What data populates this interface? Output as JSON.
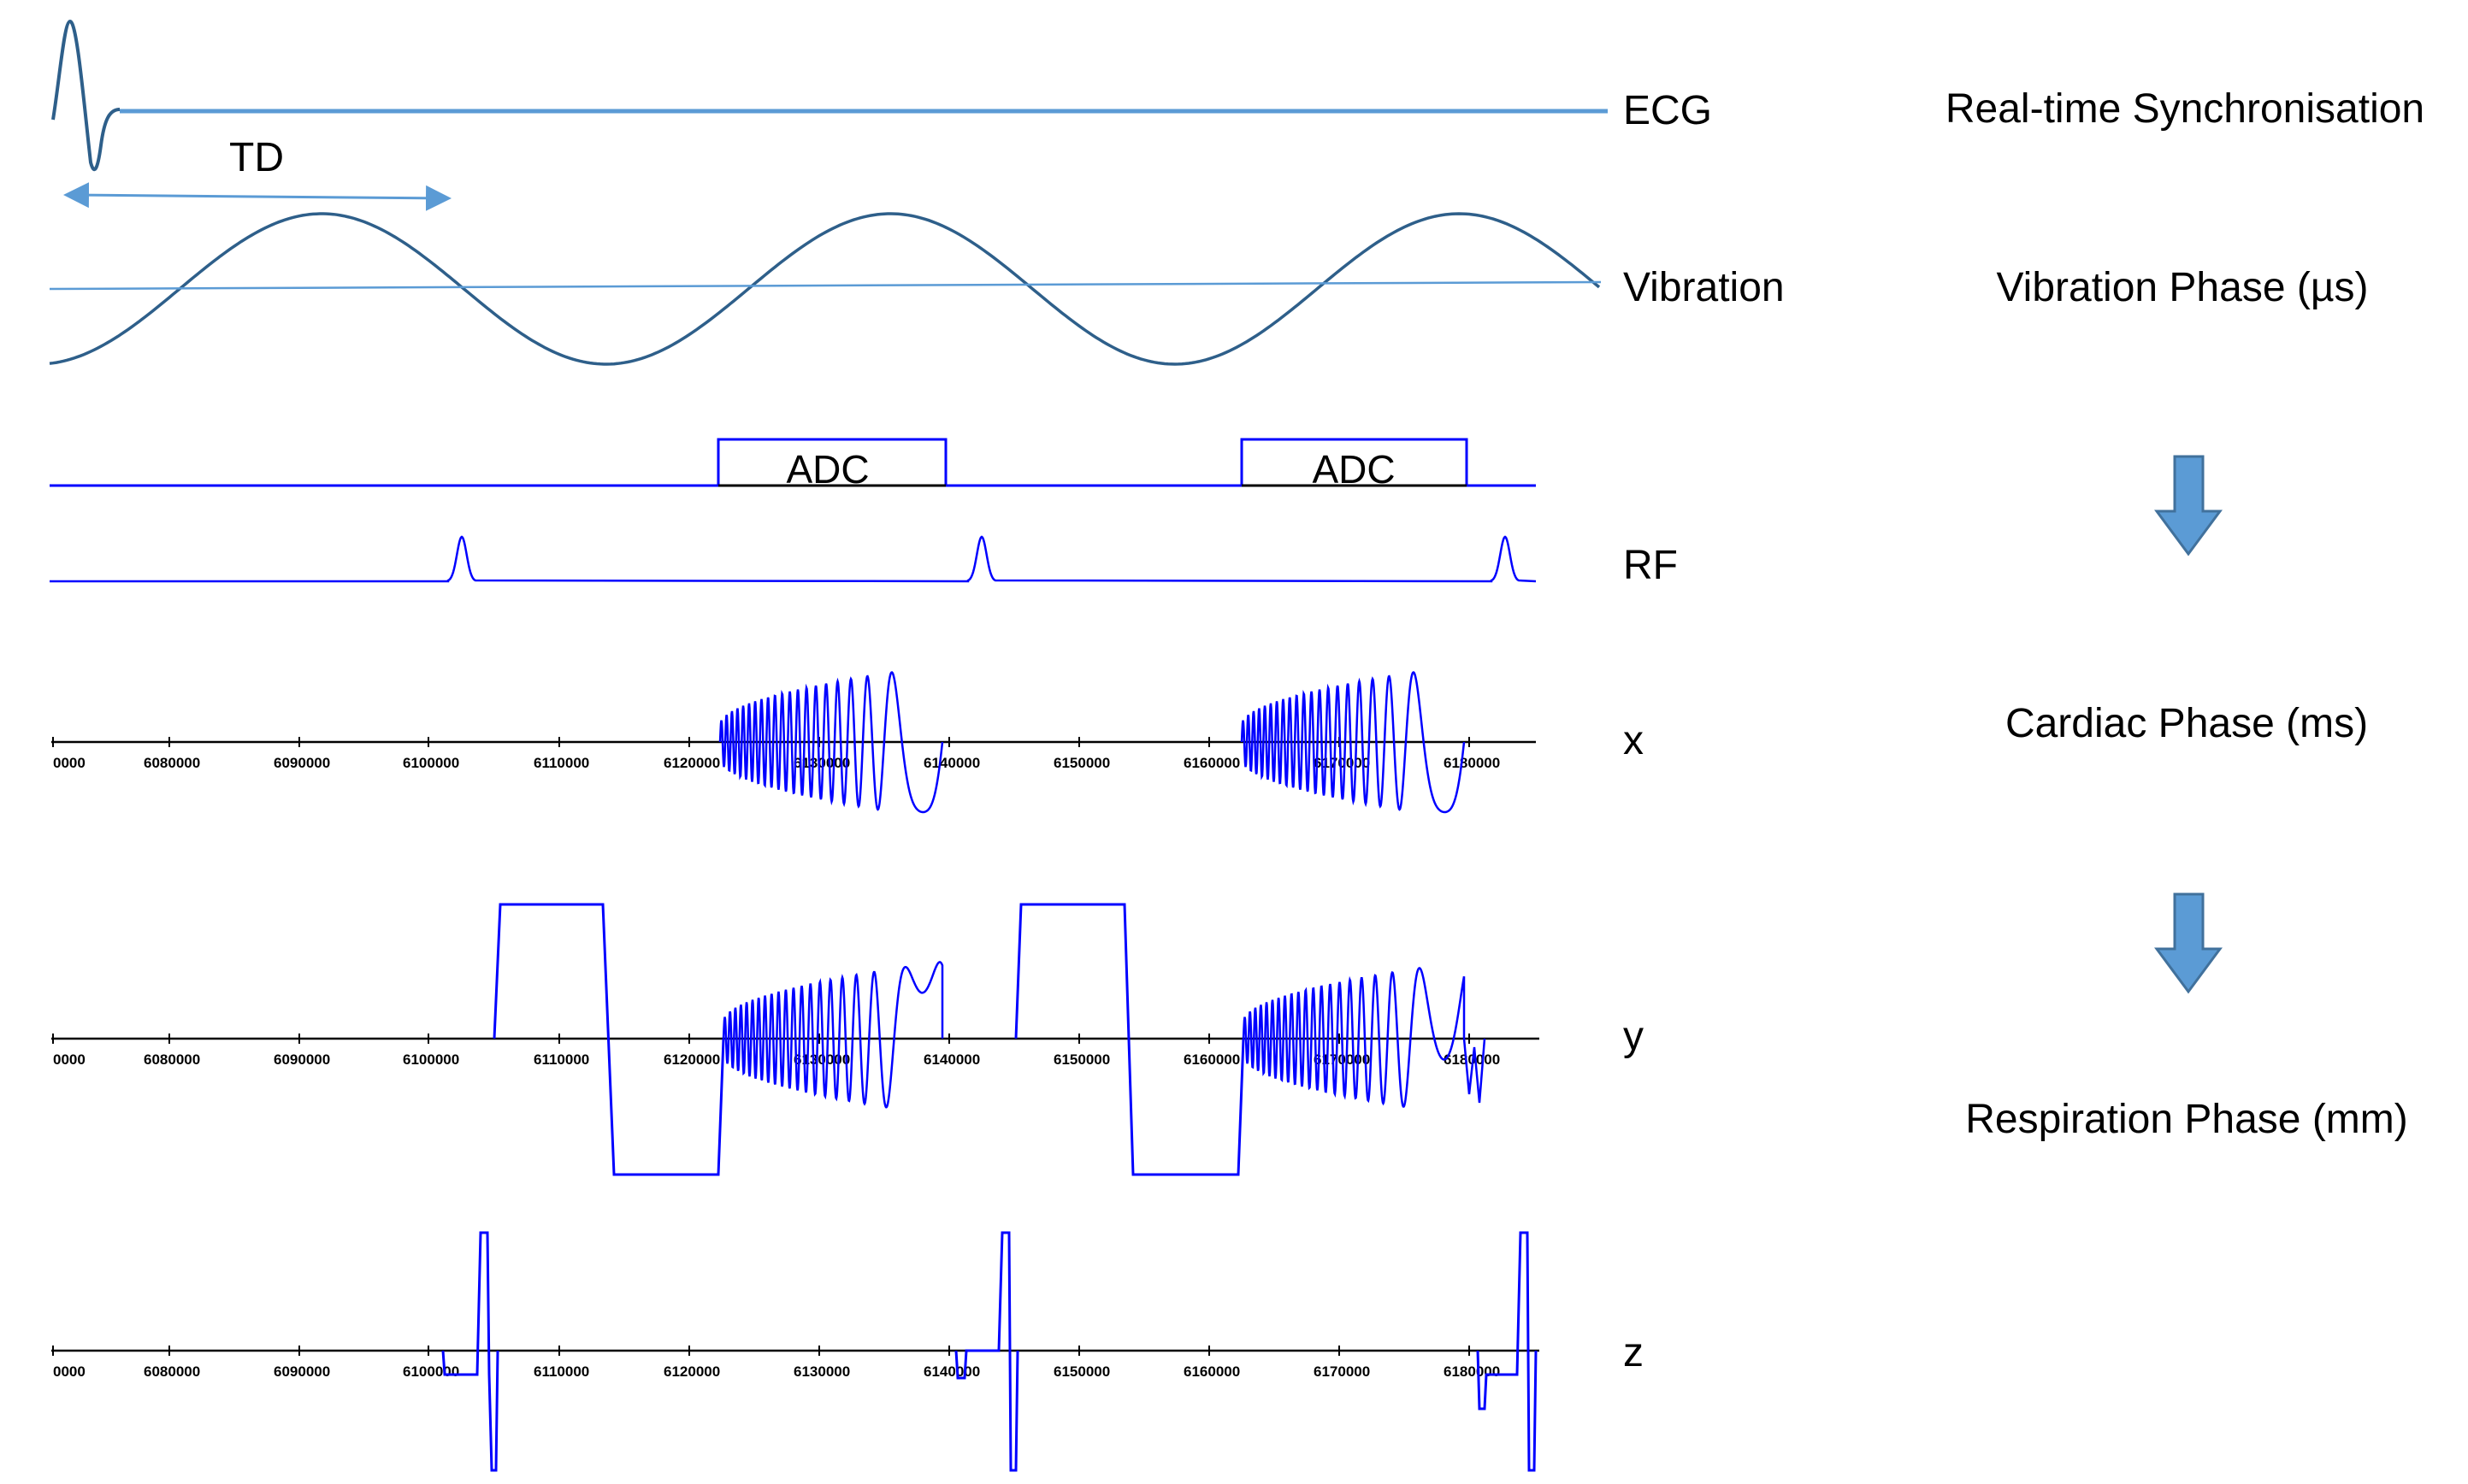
{
  "channels": {
    "ecg": "ECG",
    "vibration": "Vibration",
    "rf": "RF",
    "x": "x",
    "y": "y",
    "z": "z"
  },
  "adc_blocks": [
    "ADC",
    "ADC"
  ],
  "td_label": "TD",
  "phases": {
    "realtime": "Real-time Synchronisation",
    "vibration": "Vibration Phase (µs)",
    "cardiac": "Cardiac Phase (ms)",
    "respiration": "Respiration Phase (mm)"
  },
  "axis_ticks": [
    "0000",
    "6080000",
    "6090000",
    "6100000",
    "6110000",
    "6120000",
    "6130000",
    "6140000",
    "6150000",
    "6160000",
    "6170000",
    "6180000"
  ],
  "colors": {
    "signal": "#0000ff",
    "ecg_line": "#5b9bd5",
    "vibration_curve": "#2e5f8a",
    "arrow_fill": "#5b9bd5",
    "arrow_stroke": "#41719c",
    "axis": "#000000"
  }
}
